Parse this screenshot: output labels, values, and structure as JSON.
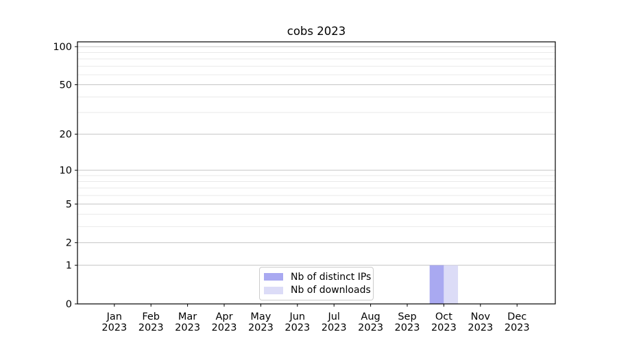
{
  "chart_data": {
    "type": "bar",
    "title": "cobs 2023",
    "categories": [
      "Jan",
      "Feb",
      "Mar",
      "Apr",
      "May",
      "Jun",
      "Jul",
      "Aug",
      "Sep",
      "Oct",
      "Nov",
      "Dec"
    ],
    "year": "2023",
    "series": [
      {
        "name": "Nb of distinct IPs",
        "color": "#a9a9f1",
        "values": [
          0,
          0,
          0,
          0,
          0,
          0,
          0,
          0,
          0,
          1,
          0,
          0
        ]
      },
      {
        "name": "Nb of downloads",
        "color": "#dcdcf7",
        "values": [
          0,
          0,
          0,
          0,
          0,
          0,
          0,
          0,
          0,
          1,
          0,
          0
        ]
      }
    ],
    "xlabel": "",
    "ylabel": "",
    "yscale": "log1p",
    "yticks": [
      0,
      1,
      2,
      5,
      10,
      20,
      50,
      100
    ],
    "minor_gridlines": [
      3,
      4,
      6,
      7,
      8,
      9,
      30,
      40,
      60,
      70,
      80,
      90
    ],
    "ylim": [
      0,
      110
    ],
    "grid": "horizontal",
    "legend_position": "inside-bottom-center"
  },
  "colors": {
    "background": "#ffffff",
    "axis": "#000000",
    "text": "#000000",
    "grid_major": "#c4c4c4",
    "grid_minor": "#e9e9e9",
    "legend_border": "#cccccc"
  }
}
